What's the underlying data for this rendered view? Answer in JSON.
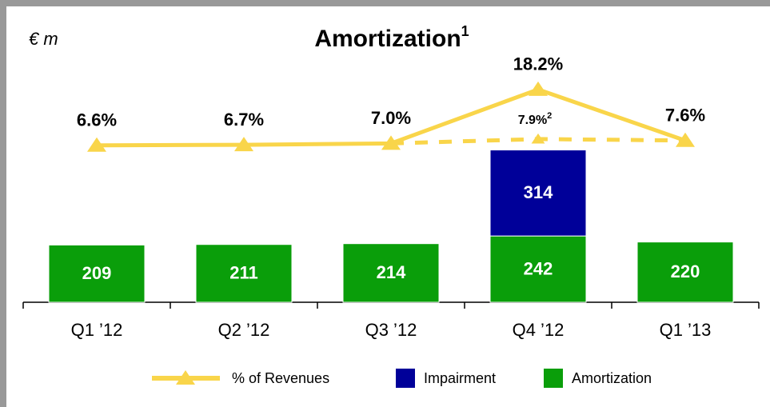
{
  "chart_data": {
    "type": "bar",
    "title": "Amortization",
    "title_note": "1",
    "unit_label": "€ m",
    "categories": [
      "Q1 ’12",
      "Q2 ’12",
      "Q3 ’12",
      "Q4 ’12",
      "Q1 ’13"
    ],
    "stacked": true,
    "ylim": [
      0,
      870
    ],
    "y2lim": [
      -26,
      23.5
    ],
    "series": [
      {
        "name": "% of Revenues",
        "type": "line",
        "axis": "y2",
        "color": "#f9d54a",
        "values": [
          6.6,
          6.7,
          7.0,
          18.2,
          7.6
        ],
        "value_labels": [
          "6.6%",
          "6.7%",
          "7.0%",
          "18.2%",
          "7.6%"
        ],
        "adjusted_values": [
          null,
          null,
          7.0,
          7.9,
          7.6
        ],
        "adjusted_value_labels": [
          null,
          null,
          null,
          "7.9%",
          null
        ],
        "adjusted_note": "2"
      },
      {
        "name": "Impairment",
        "color": "#000099",
        "values": [
          null,
          null,
          null,
          314,
          null
        ]
      },
      {
        "name": "Amortization",
        "color": "#0a9e0a",
        "values": [
          209,
          211,
          214,
          242,
          220
        ]
      }
    ]
  }
}
